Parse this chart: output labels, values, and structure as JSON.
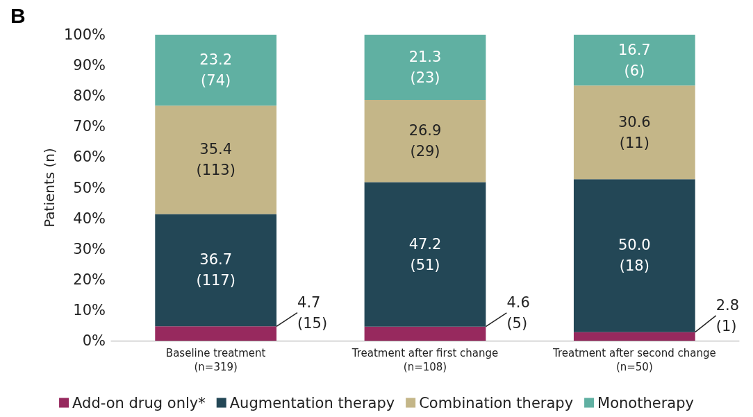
{
  "chart_data": {
    "type": "bar",
    "stacked": true,
    "title": "B",
    "ylabel": "Patients (n)",
    "categories": [
      "Baseline treatment\n(n=319)",
      "Treatment after first change\n(n=108)",
      "Treatment after second change\n(n=50)"
    ],
    "series": [
      {
        "name": "Add-on drug only*",
        "color": "#97295e",
        "values": [
          4.7,
          4.6,
          2.8
        ],
        "value_labels": [
          "4.7\n(15)",
          "4.6\n(5)",
          "2.8\n(1)"
        ]
      },
      {
        "name": "Augmentation therapy",
        "color": "#234756",
        "values": [
          36.7,
          47.2,
          50.0
        ],
        "value_labels": [
          "36.7\n(117)",
          "47.2\n(51)",
          "50.0\n(18)"
        ]
      },
      {
        "name": "Combination therapy",
        "color": "#c4b688",
        "values": [
          35.4,
          26.9,
          30.6
        ],
        "value_labels": [
          "35.4\n(113)",
          "26.9\n(29)",
          "30.6\n(11)"
        ]
      },
      {
        "name": "Monotherapy",
        "color": "#60b0a2",
        "values": [
          23.2,
          21.3,
          16.7
        ],
        "value_labels": [
          "23.2\n(74)",
          "21.3\n(23)",
          "16.7\n(6)"
        ]
      }
    ],
    "ylim": [
      0,
      100
    ],
    "yticks": [
      {
        "value": 0,
        "label": "0%"
      },
      {
        "value": 10,
        "label": "10%"
      },
      {
        "value": 20,
        "label": "20%"
      },
      {
        "value": 30,
        "label": "30%"
      },
      {
        "value": 40,
        "label": "40%"
      },
      {
        "value": 50,
        "label": "50%"
      },
      {
        "value": 60,
        "label": "60%"
      },
      {
        "value": 70,
        "label": "70%"
      },
      {
        "value": 80,
        "label": "80%"
      },
      {
        "value": 90,
        "label": "90%"
      },
      {
        "value": 100,
        "label": "100%"
      }
    ],
    "grid": false,
    "legend": "bottom"
  }
}
